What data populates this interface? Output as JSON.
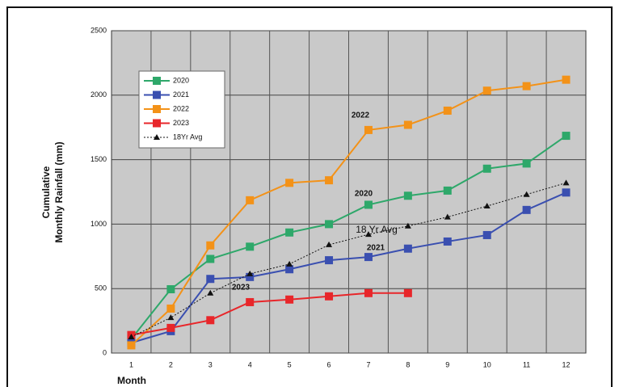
{
  "chart_data": {
    "type": "line",
    "y_label_lines": [
      "Cumulative",
      "Monthly Rainfall (mm)"
    ],
    "x_label": "Month",
    "categories": [
      "1",
      "2",
      "3",
      "4",
      "5",
      "6",
      "7",
      "8",
      "9",
      "10",
      "11",
      "12"
    ],
    "ylim": [
      0,
      2500
    ],
    "yticks": [
      0,
      500,
      1000,
      1500,
      2000,
      2500
    ],
    "grid": true,
    "series": [
      {
        "name": "2020",
        "color": "#2ea86a",
        "marker": "square",
        "dashed": false,
        "values": [
          110,
          495,
          730,
          825,
          935,
          1000,
          1150,
          1220,
          1260,
          1430,
          1470,
          1685
        ]
      },
      {
        "name": "2021",
        "color": "#3a4fb0",
        "marker": "square",
        "dashed": false,
        "values": [
          80,
          170,
          575,
          590,
          650,
          720,
          745,
          810,
          865,
          915,
          1110,
          1245
        ]
      },
      {
        "name": "2022",
        "color": "#f39218",
        "marker": "square",
        "dashed": false,
        "values": [
          60,
          345,
          835,
          1185,
          1320,
          1340,
          1730,
          1770,
          1880,
          2035,
          2070,
          2120
        ]
      },
      {
        "name": "2023",
        "color": "#e8262a",
        "marker": "square",
        "dashed": false,
        "values": [
          140,
          195,
          255,
          395,
          415,
          440,
          465,
          465,
          null,
          null,
          null,
          null
        ]
      },
      {
        "name": "18Yr Avg",
        "color": "#111111",
        "marker": "triangle",
        "dashed": true,
        "values": [
          125,
          275,
          465,
          615,
          690,
          840,
          920,
          985,
          1055,
          1140,
          1230,
          1320
        ]
      }
    ],
    "annotations": [
      "2022",
      "2020",
      "18 Yr Avg",
      "2021",
      "2023"
    ]
  }
}
